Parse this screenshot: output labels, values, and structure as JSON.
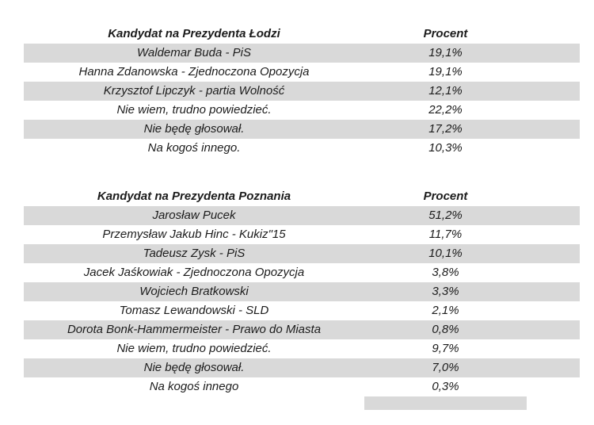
{
  "colors": {
    "row_shade": "#d9d9d9",
    "background": "#ffffff",
    "text": "#1c1c1c"
  },
  "tables": [
    {
      "header": {
        "candidate": "Kandydat na Prezydenta Łodzi",
        "percent": "Procent"
      },
      "rows": [
        {
          "label": "Waldemar Buda - PiS",
          "value": "19,1%"
        },
        {
          "label": "Hanna Zdanowska - Zjednoczona Opozycja",
          "value": "19,1%"
        },
        {
          "label": "Krzysztof Lipczyk - partia Wolność",
          "value": "12,1%"
        },
        {
          "label": "Nie wiem, trudno powiedzieć.",
          "value": "22,2%"
        },
        {
          "label": "Nie będę głosował.",
          "value": "17,2%"
        },
        {
          "label": "Na kogoś innego.",
          "value": "10,3%"
        }
      ]
    },
    {
      "header": {
        "candidate": "Kandydat na Prezydenta Poznania",
        "percent": "Procent"
      },
      "rows": [
        {
          "label": "Jarosław Pucek",
          "value": "51,2%"
        },
        {
          "label": "Przemysław Jakub Hinc - Kukiz\"15",
          "value": "11,7%"
        },
        {
          "label": "Tadeusz Zysk - PiS",
          "value": "10,1%"
        },
        {
          "label": "Jacek Jaśkowiak - Zjednoczona Opozycja",
          "value": "3,8%"
        },
        {
          "label": "Wojciech Bratkowski",
          "value": "3,3%"
        },
        {
          "label": "Tomasz Lewandowski - SLD",
          "value": "2,1%"
        },
        {
          "label": "Dorota Bonk-Hammermeister - Prawo do Miasta",
          "value": "0,8%"
        },
        {
          "label": "Nie wiem, trudno powiedzieć.",
          "value": "9,7%"
        },
        {
          "label": "Nie będę głosował.",
          "value": "7,0%"
        },
        {
          "label": "Na kogoś innego",
          "value": "0,3%"
        }
      ]
    }
  ],
  "chart_data": [
    {
      "type": "table",
      "title": "Kandydat na Prezydenta Łodzi",
      "columns": [
        "Kandydat na Prezydenta Łodzi",
        "Procent"
      ],
      "categories": [
        "Waldemar Buda - PiS",
        "Hanna Zdanowska - Zjednoczona Opozycja",
        "Krzysztof Lipczyk - partia Wolność",
        "Nie wiem, trudno powiedzieć.",
        "Nie będę głosował.",
        "Na kogoś innego."
      ],
      "values": [
        19.1,
        19.1,
        12.1,
        22.2,
        17.2,
        10.3
      ],
      "unit": "%"
    },
    {
      "type": "table",
      "title": "Kandydat na Prezydenta Poznania",
      "columns": [
        "Kandydat na Prezydenta Poznania",
        "Procent"
      ],
      "categories": [
        "Jarosław Pucek",
        "Przemysław Jakub Hinc - Kukiz\"15",
        "Tadeusz Zysk - PiS",
        "Jacek Jaśkowiak - Zjednoczona Opozycja",
        "Wojciech Bratkowski",
        "Tomasz Lewandowski - SLD",
        "Dorota Bonk-Hammermeister - Prawo do Miasta",
        "Nie wiem, trudno powiedzieć.",
        "Nie będę głosował.",
        "Na kogoś innego"
      ],
      "values": [
        51.2,
        11.7,
        10.1,
        3.8,
        3.3,
        2.1,
        0.8,
        9.7,
        7.0,
        0.3
      ],
      "unit": "%"
    }
  ]
}
